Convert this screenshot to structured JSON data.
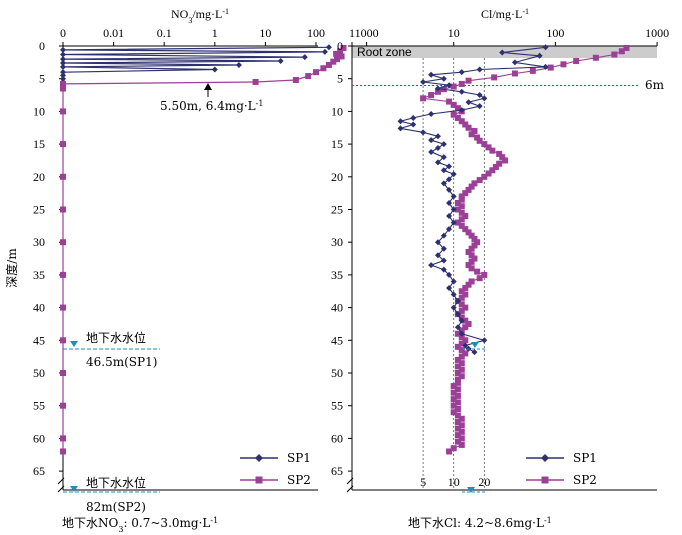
{
  "colors": {
    "sp1": "#2e3170",
    "sp2": "#9c3f97",
    "water": "#1f8fb8",
    "root": "#cccccc",
    "six": "#e02020"
  },
  "depth_label": "深度/m",
  "chart_data": [
    {
      "type": "line",
      "title": "NO3/mg·L-1",
      "title_parts": {
        "a": "NO",
        "b": "3",
        "c": "/mg·L",
        "d": "-1"
      },
      "x_scale": "log",
      "x_tick_labels": [
        "0",
        "0.01",
        "0.1",
        "1",
        "10",
        "100",
        "1000"
      ],
      "ylabel": "深度/m",
      "y_tick_labels": [
        "0",
        "5",
        "10",
        "15",
        "20",
        "25",
        "30",
        "35",
        "40",
        "45",
        "50",
        "55",
        "60",
        "65"
      ],
      "ylim": [
        0,
        68
      ],
      "legend": {
        "position": "bottom-right",
        "items": [
          "SP1",
          "SP2"
        ]
      },
      "annotation": {
        "text": "5.50m, 6.4mg·L-1",
        "text_main": "5.50m, 6.4mg·L",
        "text_sup": "-1",
        "x": 6.4,
        "y": 5.5
      },
      "groundwater": [
        {
          "label": "地下水水位",
          "depth_text": "46.5m(SP1)",
          "depth": 46.5
        },
        {
          "label": "地下水水位",
          "depth_text": "82m(SP2)",
          "depth": 82
        }
      ],
      "footer": "地下水NO3: 0.7~3.0mg·L-1",
      "footer_parts": {
        "a": "地下水NO",
        "b": "3",
        "c": ": 0.7~3.0mg·L",
        "d": "-1"
      },
      "series": [
        {
          "name": "SP1",
          "points": [
            [
              180,
              0.2
            ],
            [
              0.001,
              0.6
            ],
            [
              150,
              0.9
            ],
            [
              0.001,
              1.3
            ],
            [
              60,
              1.7
            ],
            [
              0.001,
              2.0
            ],
            [
              20,
              2.3
            ],
            [
              0.001,
              2.6
            ],
            [
              3,
              2.9
            ],
            [
              0.001,
              3.2
            ],
            [
              1,
              3.6
            ],
            [
              0.001,
              4.0
            ],
            [
              0.001,
              4.5
            ],
            [
              0.001,
              5.0
            ],
            [
              0.001,
              5.5
            ]
          ]
        },
        {
          "name": "SP2",
          "points": [
            [
              350,
              0.3
            ],
            [
              300,
              0.8
            ],
            [
              250,
              1.2
            ],
            [
              320,
              1.6
            ],
            [
              260,
              2.0
            ],
            [
              220,
              2.4
            ],
            [
              180,
              2.9
            ],
            [
              140,
              3.4
            ],
            [
              100,
              4.0
            ],
            [
              70,
              4.6
            ],
            [
              40,
              5.2
            ],
            [
              6.4,
              5.5
            ],
            [
              0.001,
              5.8
            ],
            [
              0.001,
              6.5
            ],
            [
              0.001,
              10
            ],
            [
              0.001,
              15
            ],
            [
              0.001,
              20
            ],
            [
              0.001,
              25
            ],
            [
              0.001,
              30
            ],
            [
              0.001,
              35
            ],
            [
              0.001,
              40
            ],
            [
              0.001,
              45
            ],
            [
              0.001,
              50
            ],
            [
              0.001,
              55
            ],
            [
              0.001,
              60
            ],
            [
              0.001,
              62
            ]
          ]
        }
      ]
    },
    {
      "type": "line",
      "title": "Cl/mg·L-1",
      "title_parts": {
        "a": "Cl/mg·L",
        "b": "-1"
      },
      "x_scale": "log",
      "x_tick_labels": [
        "1",
        "10",
        "100",
        "1000"
      ],
      "x_tick_values": [
        1,
        10,
        100,
        1000
      ],
      "bottom_tick_labels": [
        "5",
        "10",
        "20"
      ],
      "bottom_tick_values": [
        5,
        10,
        20
      ],
      "y_tick_labels": [
        "0",
        "5",
        "10",
        "15",
        "20",
        "25",
        "30",
        "35",
        "40",
        "45",
        "50",
        "55",
        "60",
        "65"
      ],
      "ylim": [
        0,
        68
      ],
      "root_zone_label": "Root zone",
      "root_zone_depth": 1.5,
      "line_6m_label": "6m",
      "line_6m_depth": 6,
      "legend": {
        "position": "bottom-right",
        "items": [
          "SP1",
          "SP2"
        ]
      },
      "groundwater_depth": 46.5,
      "footer": "地下水Cl: 4.2~8.6mg·L-1",
      "footer_parts": {
        "a": "地下水Cl: 4.2~8.6mg·L",
        "b": "-1"
      },
      "series": [
        {
          "name": "SP1",
          "points": [
            [
              80,
              0.2
            ],
            [
              30,
              1.0
            ],
            [
              70,
              1.5
            ],
            [
              40,
              2.5
            ],
            [
              80,
              3.2
            ],
            [
              18,
              3.6
            ],
            [
              12,
              4.0
            ],
            [
              6,
              4.4
            ],
            [
              8,
              5.0
            ],
            [
              5,
              5.5
            ],
            [
              9,
              6.0
            ],
            [
              7,
              6.5
            ],
            [
              12,
              7.0
            ],
            [
              18,
              7.5
            ],
            [
              20,
              8.0
            ],
            [
              14,
              8.6
            ],
            [
              18,
              9.2
            ],
            [
              12,
              9.8
            ],
            [
              6,
              10.4
            ],
            [
              4,
              11.0
            ],
            [
              3,
              11.5
            ],
            [
              4,
              12.0
            ],
            [
              3,
              12.6
            ],
            [
              5,
              13.2
            ],
            [
              7,
              13.8
            ],
            [
              6,
              14.4
            ],
            [
              8,
              15.0
            ],
            [
              7,
              15.6
            ],
            [
              6,
              16.2
            ],
            [
              8,
              17.0
            ],
            [
              7,
              17.8
            ],
            [
              9,
              18.4
            ],
            [
              8,
              19.0
            ],
            [
              10,
              19.6
            ],
            [
              9,
              20.4
            ],
            [
              8,
              21.0
            ],
            [
              9,
              22.0
            ],
            [
              10,
              23.0
            ],
            [
              9,
              24.0
            ],
            [
              10,
              25.0
            ],
            [
              9,
              26.0
            ],
            [
              10,
              27.0
            ],
            [
              9,
              28.0
            ],
            [
              8,
              29.0
            ],
            [
              7,
              30.0
            ],
            [
              8,
              31.0
            ],
            [
              7,
              32.0
            ],
            [
              8,
              32.8
            ],
            [
              6,
              33.5
            ],
            [
              8,
              34.2
            ],
            [
              9,
              35.0
            ],
            [
              10,
              36.0
            ],
            [
              9,
              37.0
            ],
            [
              10,
              38.0
            ],
            [
              11,
              39.0
            ],
            [
              10,
              40.0
            ],
            [
              11,
              41.0
            ],
            [
              12,
              42.0
            ],
            [
              11,
              43.0
            ],
            [
              12,
              44.0
            ],
            [
              20,
              45.0
            ],
            [
              13,
              45.8
            ],
            [
              14,
              46.3
            ],
            [
              16,
              46.8
            ]
          ]
        },
        {
          "name": "SP2",
          "points": [
            [
              500,
              0.3
            ],
            [
              450,
              0.8
            ],
            [
              380,
              1.3
            ],
            [
              250,
              1.8
            ],
            [
              160,
              2.3
            ],
            [
              120,
              2.8
            ],
            [
              90,
              3.3
            ],
            [
              60,
              3.8
            ],
            [
              40,
              4.2
            ],
            [
              25,
              4.8
            ],
            [
              14,
              5.3
            ],
            [
              12,
              5.8
            ],
            [
              10,
              6.2
            ],
            [
              8,
              6.6
            ],
            [
              7,
              7.0
            ],
            [
              6,
              7.5
            ],
            [
              5,
              8.0
            ],
            [
              9,
              8.5
            ],
            [
              10,
              9.0
            ],
            [
              11,
              9.5
            ],
            [
              12,
              10.0
            ],
            [
              10,
              10.5
            ],
            [
              11,
              11.0
            ],
            [
              12,
              11.5
            ],
            [
              13,
              12.0
            ],
            [
              14,
              12.5
            ],
            [
              16,
              13.0
            ],
            [
              15,
              13.5
            ],
            [
              17,
              14.0
            ],
            [
              18,
              14.5
            ],
            [
              20,
              15.0
            ],
            [
              22,
              15.5
            ],
            [
              24,
              16.0
            ],
            [
              28,
              16.5
            ],
            [
              30,
              17.0
            ],
            [
              32,
              17.5
            ],
            [
              28,
              18.0
            ],
            [
              26,
              18.5
            ],
            [
              24,
              19.0
            ],
            [
              22,
              19.5
            ],
            [
              20,
              20.0
            ],
            [
              18,
              20.5
            ],
            [
              16,
              21.0
            ],
            [
              15,
              21.5
            ],
            [
              14,
              22.0
            ],
            [
              13,
              22.5
            ],
            [
              12,
              23.0
            ],
            [
              12,
              23.5
            ],
            [
              11,
              24.0
            ],
            [
              12,
              24.5
            ],
            [
              11,
              25.0
            ],
            [
              12,
              25.5
            ],
            [
              13,
              26.0
            ],
            [
              12,
              26.5
            ],
            [
              11,
              27.0
            ],
            [
              12,
              27.5
            ],
            [
              13,
              28.0
            ],
            [
              14,
              28.5
            ],
            [
              15,
              29.0
            ],
            [
              16,
              29.5
            ],
            [
              17,
              30.0
            ],
            [
              16,
              30.5
            ],
            [
              15,
              31.0
            ],
            [
              14,
              31.5
            ],
            [
              15,
              32.0
            ],
            [
              16,
              32.5
            ],
            [
              15,
              33.0
            ],
            [
              14,
              33.5
            ],
            [
              15,
              34.0
            ],
            [
              17,
              34.5
            ],
            [
              20,
              35.0
            ],
            [
              18,
              35.5
            ],
            [
              15,
              36.0
            ],
            [
              14,
              36.5
            ],
            [
              13,
              37.0
            ],
            [
              12,
              37.5
            ],
            [
              13,
              38.0
            ],
            [
              12,
              38.5
            ],
            [
              11,
              39.0
            ],
            [
              12,
              39.5
            ],
            [
              13,
              40.0
            ],
            [
              12,
              40.5
            ],
            [
              11,
              41.0
            ],
            [
              12,
              41.5
            ],
            [
              13,
              42.0
            ],
            [
              14,
              42.5
            ],
            [
              13,
              43.0
            ],
            [
              12,
              43.5
            ],
            [
              11,
              44.0
            ],
            [
              12,
              44.5
            ],
            [
              13,
              45.0
            ],
            [
              12,
              45.5
            ],
            [
              11,
              46.0
            ],
            [
              12,
              46.5
            ],
            [
              13,
              47.0
            ],
            [
              12,
              47.5
            ],
            [
              11,
              48.0
            ],
            [
              12,
              48.5
            ],
            [
              11,
              49.0
            ],
            [
              12,
              49.5
            ],
            [
              11,
              50.0
            ],
            [
              12,
              50.5
            ],
            [
              11,
              51.0
            ],
            [
              11,
              51.5
            ],
            [
              10,
              52.0
            ],
            [
              11,
              52.5
            ],
            [
              10,
              53.0
            ],
            [
              11,
              53.5
            ],
            [
              10,
              54.0
            ],
            [
              11,
              54.5
            ],
            [
              10,
              55.0
            ],
            [
              11,
              55.5
            ],
            [
              10,
              56.0
            ],
            [
              11,
              56.5
            ],
            [
              12,
              57.0
            ],
            [
              11,
              57.5
            ],
            [
              12,
              58.0
            ],
            [
              11,
              58.5
            ],
            [
              12,
              59.0
            ],
            [
              11,
              59.5
            ],
            [
              12,
              60.0
            ],
            [
              11,
              60.5
            ],
            [
              12,
              61.0
            ],
            [
              10,
              61.5
            ],
            [
              9,
              62.0
            ]
          ]
        }
      ]
    }
  ]
}
